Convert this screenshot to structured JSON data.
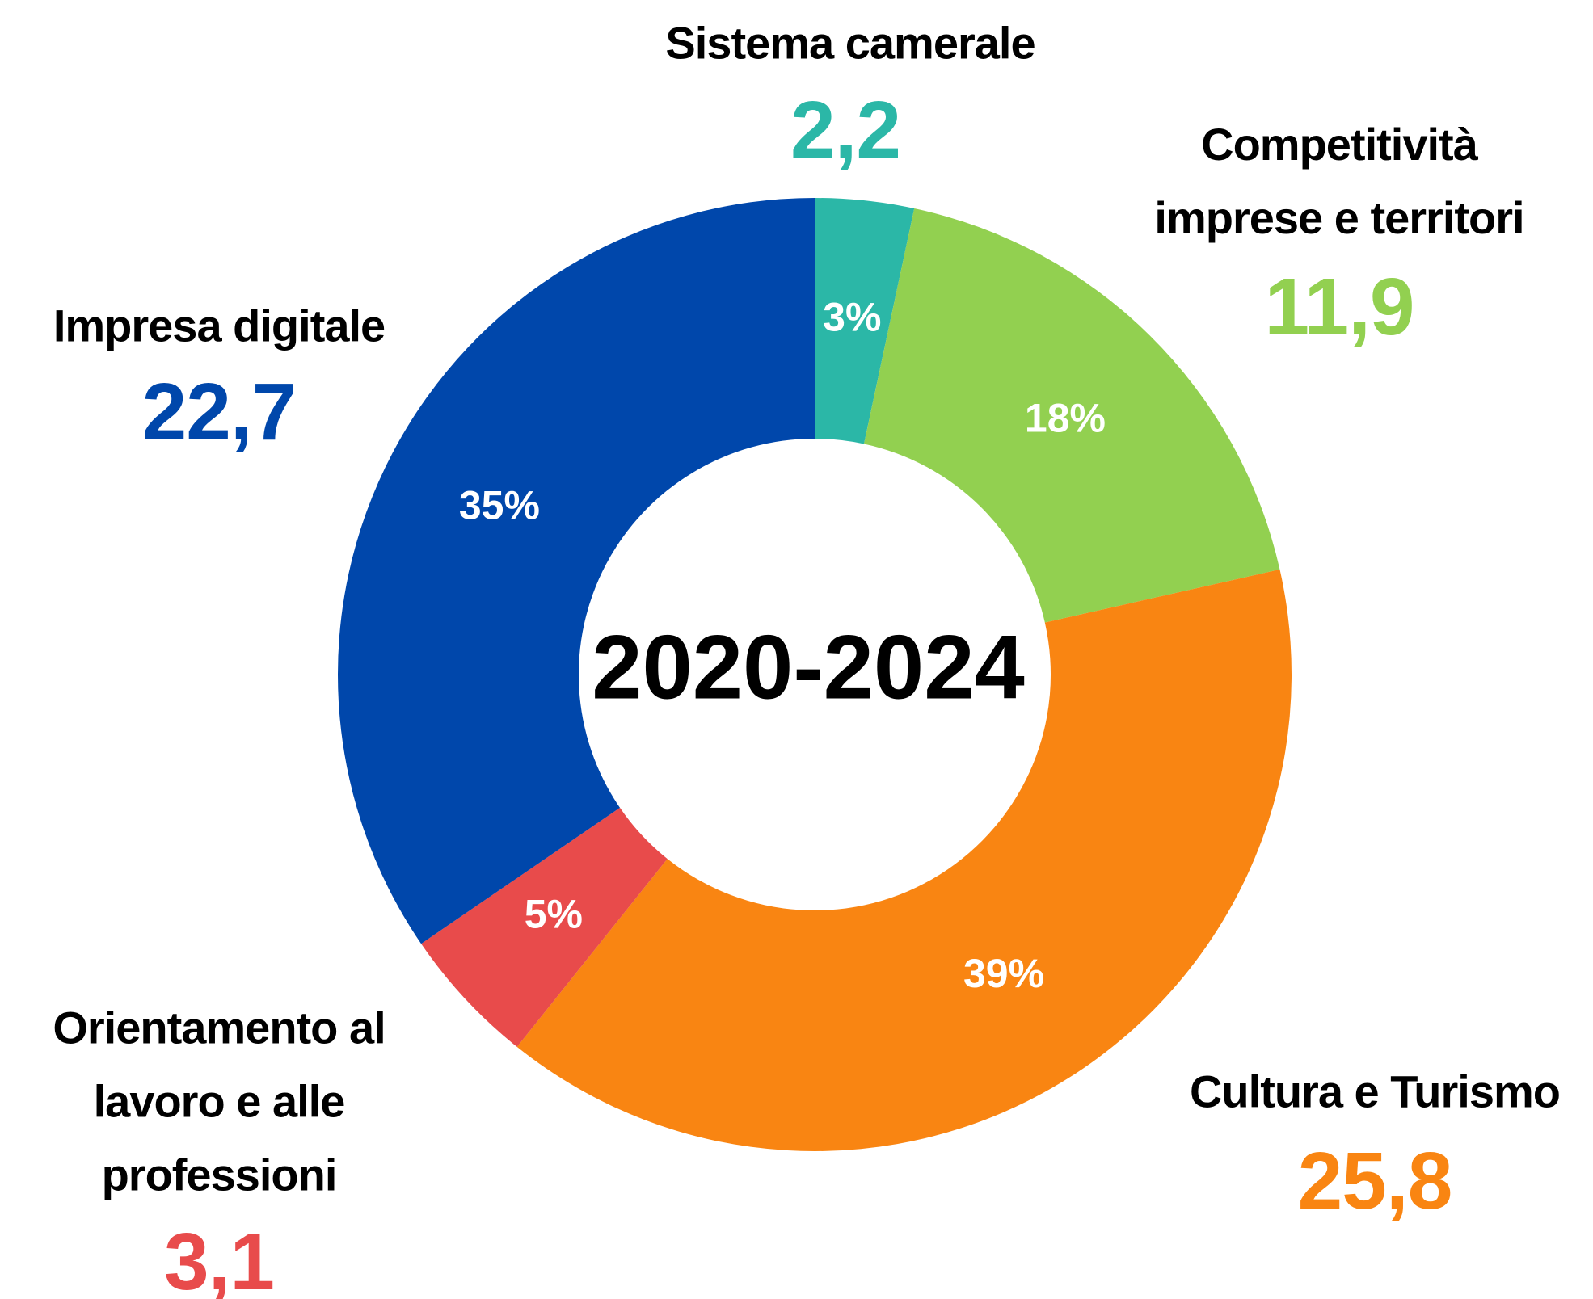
{
  "chart_data": {
    "type": "donut",
    "center_label": "2020-2024",
    "categories": [
      "Sistema camerale",
      "Competitività imprese e territori",
      "Cultura e Turismo",
      "Orientamento al lavoro e alle professioni",
      "Impresa digitale"
    ],
    "values": [
      2.2,
      11.9,
      25.8,
      3.1,
      22.7
    ],
    "value_labels": [
      "2,2",
      "11,9",
      "25,8",
      "3,1",
      "22,7"
    ],
    "percentages": [
      3,
      18,
      39,
      5,
      35
    ],
    "percentage_labels": [
      "3%",
      "18%",
      "39%",
      "5%",
      "35%"
    ],
    "colors": [
      "#2bb7a7",
      "#92d050",
      "#f98512",
      "#e84b4b",
      "#0047ab"
    ]
  }
}
